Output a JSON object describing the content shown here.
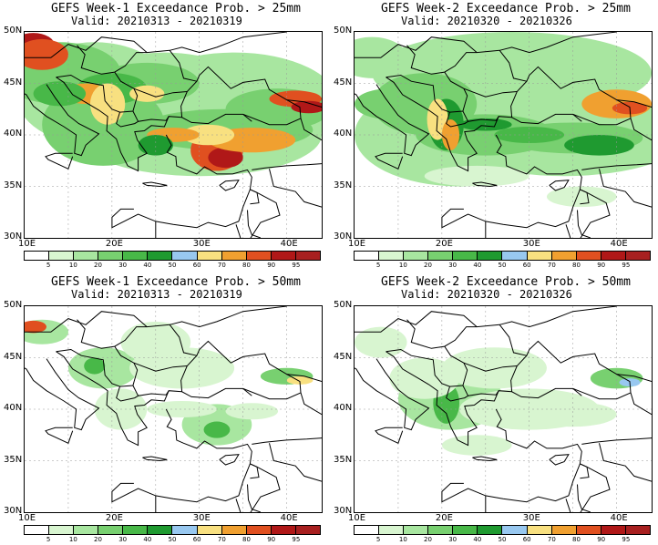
{
  "panels": [
    {
      "title": "GEFS Week-1 Exceedance Prob. > 25mm",
      "valid": "Valid: 20210313 - 20210319"
    },
    {
      "title": "GEFS Week-2 Exceedance Prob. > 25mm",
      "valid": "Valid: 20210320 - 20210326"
    },
    {
      "title": "GEFS Week-1 Exceedance Prob. > 50mm",
      "valid": "Valid: 20210313 - 20210319"
    },
    {
      "title": "GEFS Week-2 Exceedance Prob. > 50mm",
      "valid": "Valid: 20210320 - 20210326"
    }
  ],
  "lat_labels": [
    "50N",
    "45N",
    "40N",
    "35N",
    "30N"
  ],
  "lon_labels": [
    "10E",
    "20E",
    "30E",
    "40E"
  ],
  "colorbar": {
    "labels": [
      "5",
      "10",
      "20",
      "30",
      "40",
      "50",
      "60",
      "70",
      "80",
      "90",
      "95"
    ],
    "colors": [
      "#ffffff",
      "#d8f5d0",
      "#a8e6a0",
      "#78d070",
      "#48b848",
      "#1f9a30",
      "#98c8f0",
      "#f8e080",
      "#f0a030",
      "#e05020",
      "#b01818",
      "#a82020"
    ]
  }
}
